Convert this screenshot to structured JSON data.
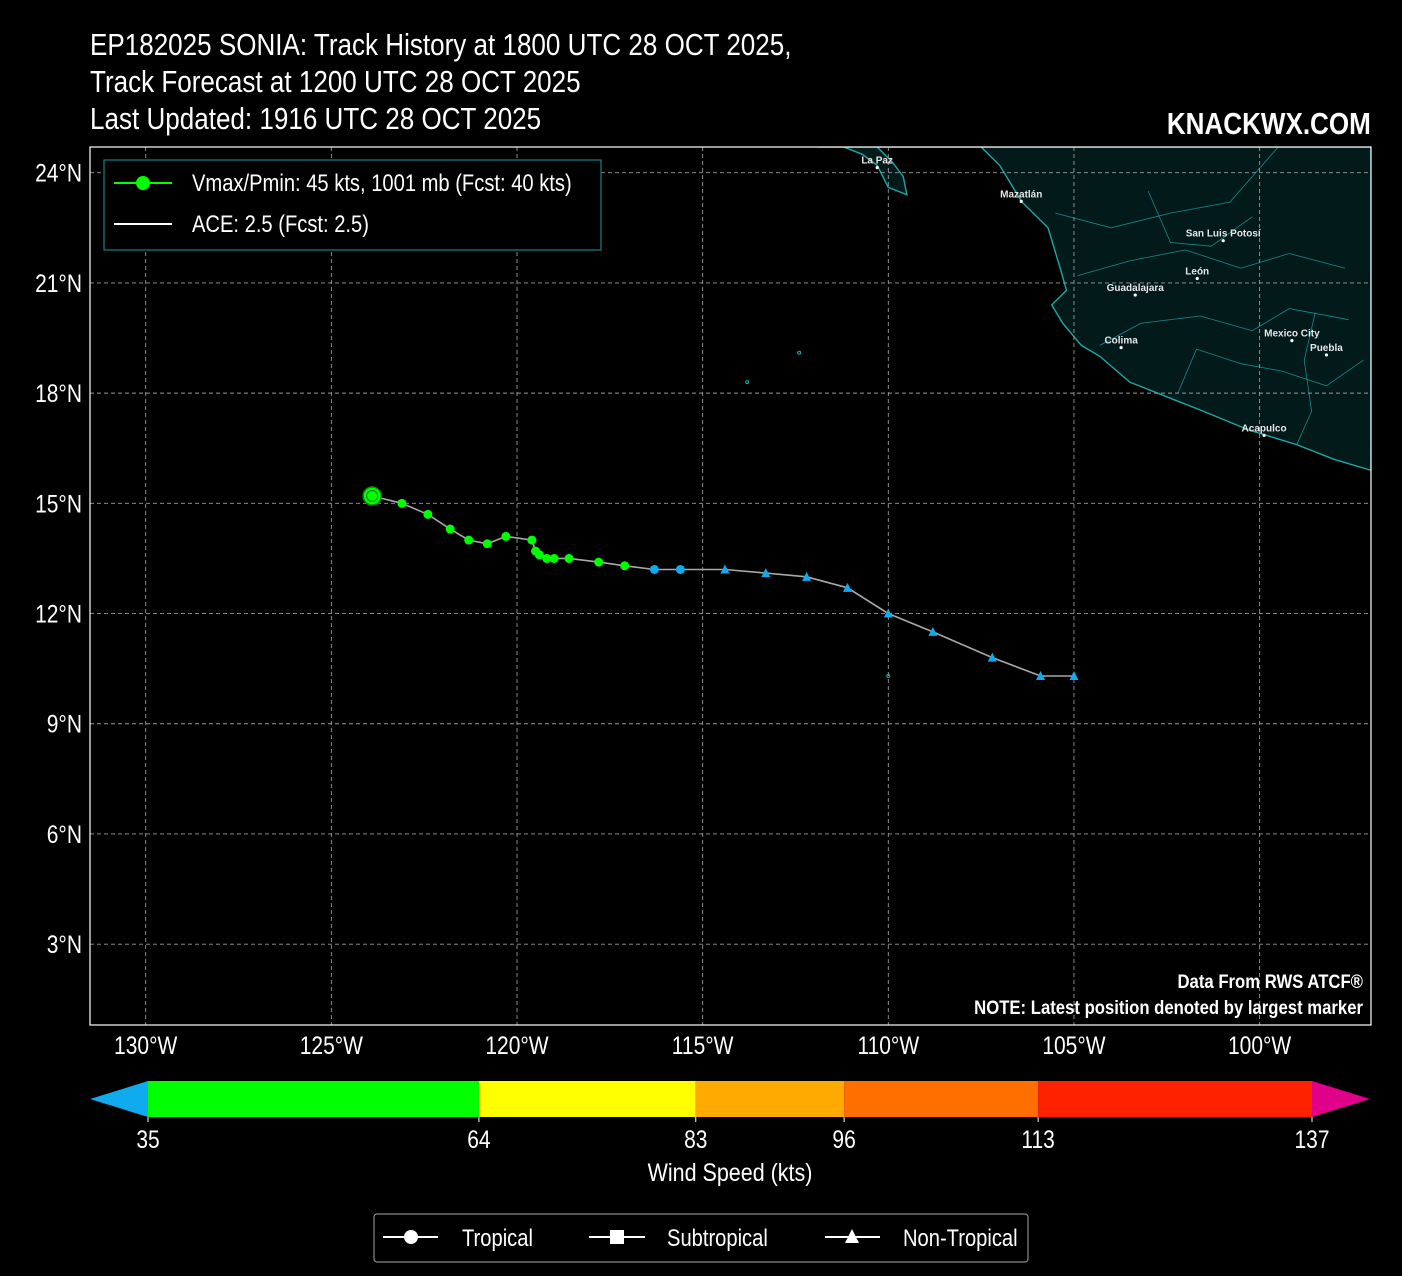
{
  "title": {
    "line1": "EP182025 SONIA: Track History at 1800 UTC 28 OCT 2025,",
    "line2": "Track Forecast at 1200 UTC 28 OCT 2025",
    "line3": "Last Updated: 1916 UTC 28 OCT 2025"
  },
  "brand": "KNACKWX.COM",
  "map": {
    "lon_range": [
      -131.5,
      -97.0
    ],
    "lat_range": [
      0.8,
      24.7
    ],
    "lat_ticks": [
      {
        "value": 24,
        "label": "24°N"
      },
      {
        "value": 21,
        "label": "21°N"
      },
      {
        "value": 18,
        "label": "18°N"
      },
      {
        "value": 15,
        "label": "15°N"
      },
      {
        "value": 12,
        "label": "12°N"
      },
      {
        "value": 9,
        "label": "9°N"
      },
      {
        "value": 6,
        "label": "6°N"
      },
      {
        "value": 3,
        "label": "3°N"
      }
    ],
    "lon_ticks": [
      {
        "value": -130,
        "label": "130°W"
      },
      {
        "value": -125,
        "label": "125°W"
      },
      {
        "value": -120,
        "label": "120°W"
      },
      {
        "value": -115,
        "label": "115°W"
      },
      {
        "value": -110,
        "label": "110°W"
      },
      {
        "value": -105,
        "label": "105°W"
      },
      {
        "value": -100,
        "label": "100°W"
      }
    ],
    "grid": true,
    "land_color": "#021a1a",
    "coast_color": "#1fa7a7",
    "cities": [
      {
        "name": "La Paz",
        "lon": -110.3,
        "lat": 24.14
      },
      {
        "name": "Mazatlán",
        "lon": -106.42,
        "lat": 23.22
      },
      {
        "name": "San Luis Potosí",
        "lon": -100.98,
        "lat": 22.15
      },
      {
        "name": "León",
        "lon": -101.68,
        "lat": 21.12
      },
      {
        "name": "Guadalajara",
        "lon": -103.35,
        "lat": 20.67
      },
      {
        "name": "Colima",
        "lon": -103.73,
        "lat": 19.24
      },
      {
        "name": "Mexico City",
        "lon": -99.13,
        "lat": 19.43
      },
      {
        "name": "Puebla",
        "lon": -98.2,
        "lat": 19.04
      },
      {
        "name": "Acapulco",
        "lon": -99.88,
        "lat": 16.85
      }
    ]
  },
  "legend": {
    "vmax_label": "Vmax/Pmin: 45 kts, 1001 mb (Fcst: 40 kts)",
    "ace_label": "ACE: 2.5 (Fcst: 2.5)",
    "vmax_color": "#00ff00",
    "ace_color": "#ffffff"
  },
  "track": [
    {
      "lon": -105.0,
      "lat": 10.3,
      "type": "non-tropical",
      "color": "#10aaee"
    },
    {
      "lon": -105.9,
      "lat": 10.3,
      "type": "non-tropical",
      "color": "#10aaee"
    },
    {
      "lon": -107.2,
      "lat": 10.8,
      "type": "non-tropical",
      "color": "#10aaee"
    },
    {
      "lon": -108.8,
      "lat": 11.5,
      "type": "non-tropical",
      "color": "#10aaee"
    },
    {
      "lon": -110.0,
      "lat": 12.0,
      "type": "non-tropical",
      "color": "#10aaee"
    },
    {
      "lon": -111.1,
      "lat": 12.7,
      "type": "non-tropical",
      "color": "#10aaee"
    },
    {
      "lon": -112.2,
      "lat": 13.0,
      "type": "non-tropical",
      "color": "#10aaee"
    },
    {
      "lon": -113.3,
      "lat": 13.1,
      "type": "non-tropical",
      "color": "#10aaee"
    },
    {
      "lon": -114.4,
      "lat": 13.2,
      "type": "non-tropical",
      "color": "#10aaee"
    },
    {
      "lon": -115.6,
      "lat": 13.2,
      "type": "tropical",
      "color": "#10aaee"
    },
    {
      "lon": -116.3,
      "lat": 13.2,
      "type": "tropical",
      "color": "#10aaee"
    },
    {
      "lon": -117.1,
      "lat": 13.3,
      "type": "tropical",
      "color": "#00ff00"
    },
    {
      "lon": -117.8,
      "lat": 13.4,
      "type": "tropical",
      "color": "#00ff00"
    },
    {
      "lon": -118.6,
      "lat": 13.5,
      "type": "tropical",
      "color": "#00ff00"
    },
    {
      "lon": -119.0,
      "lat": 13.5,
      "type": "tropical",
      "color": "#00ff00"
    },
    {
      "lon": -119.2,
      "lat": 13.5,
      "type": "tropical",
      "color": "#00ff00"
    },
    {
      "lon": -119.4,
      "lat": 13.6,
      "type": "tropical",
      "color": "#00ff00"
    },
    {
      "lon": -119.5,
      "lat": 13.7,
      "type": "tropical",
      "color": "#00ff00"
    },
    {
      "lon": -119.6,
      "lat": 14.0,
      "type": "tropical",
      "color": "#00ff00"
    },
    {
      "lon": -120.3,
      "lat": 14.1,
      "type": "tropical",
      "color": "#00ff00"
    },
    {
      "lon": -120.8,
      "lat": 13.9,
      "type": "tropical",
      "color": "#00ff00"
    },
    {
      "lon": -121.3,
      "lat": 14.0,
      "type": "tropical",
      "color": "#00ff00"
    },
    {
      "lon": -121.8,
      "lat": 14.3,
      "type": "tropical",
      "color": "#00ff00"
    },
    {
      "lon": -122.4,
      "lat": 14.7,
      "type": "tropical",
      "color": "#00ff00"
    },
    {
      "lon": -123.1,
      "lat": 15.0,
      "type": "tropical",
      "color": "#00ff00"
    },
    {
      "lon": -123.9,
      "lat": 15.2,
      "type": "tropical",
      "color": "#00ff00",
      "latest": true
    }
  ],
  "colorbar": {
    "label": "Wind Speed (kts)",
    "ticks": [
      "35",
      "64",
      "83",
      "96",
      "113",
      "137"
    ],
    "tick_values": [
      35,
      64,
      83,
      96,
      113,
      137
    ],
    "under_color": "#10aaee",
    "over_color": "#e0008a",
    "segments": [
      {
        "from": 35,
        "to": 64,
        "color": "#00ff00"
      },
      {
        "from": 64,
        "to": 83,
        "color": "#ffff00"
      },
      {
        "from": 83,
        "to": 96,
        "color": "#ffaa00"
      },
      {
        "from": 96,
        "to": 113,
        "color": "#ff6f00"
      },
      {
        "from": 113,
        "to": 137,
        "color": "#ff2200"
      }
    ]
  },
  "notes": {
    "source": "Data From RWS ATCF®",
    "latest": "NOTE: Latest position denoted by largest marker"
  },
  "type_legend": {
    "tropical": "Tropical",
    "subtropical": "Subtropical",
    "non_tropical": "Non-Tropical"
  }
}
